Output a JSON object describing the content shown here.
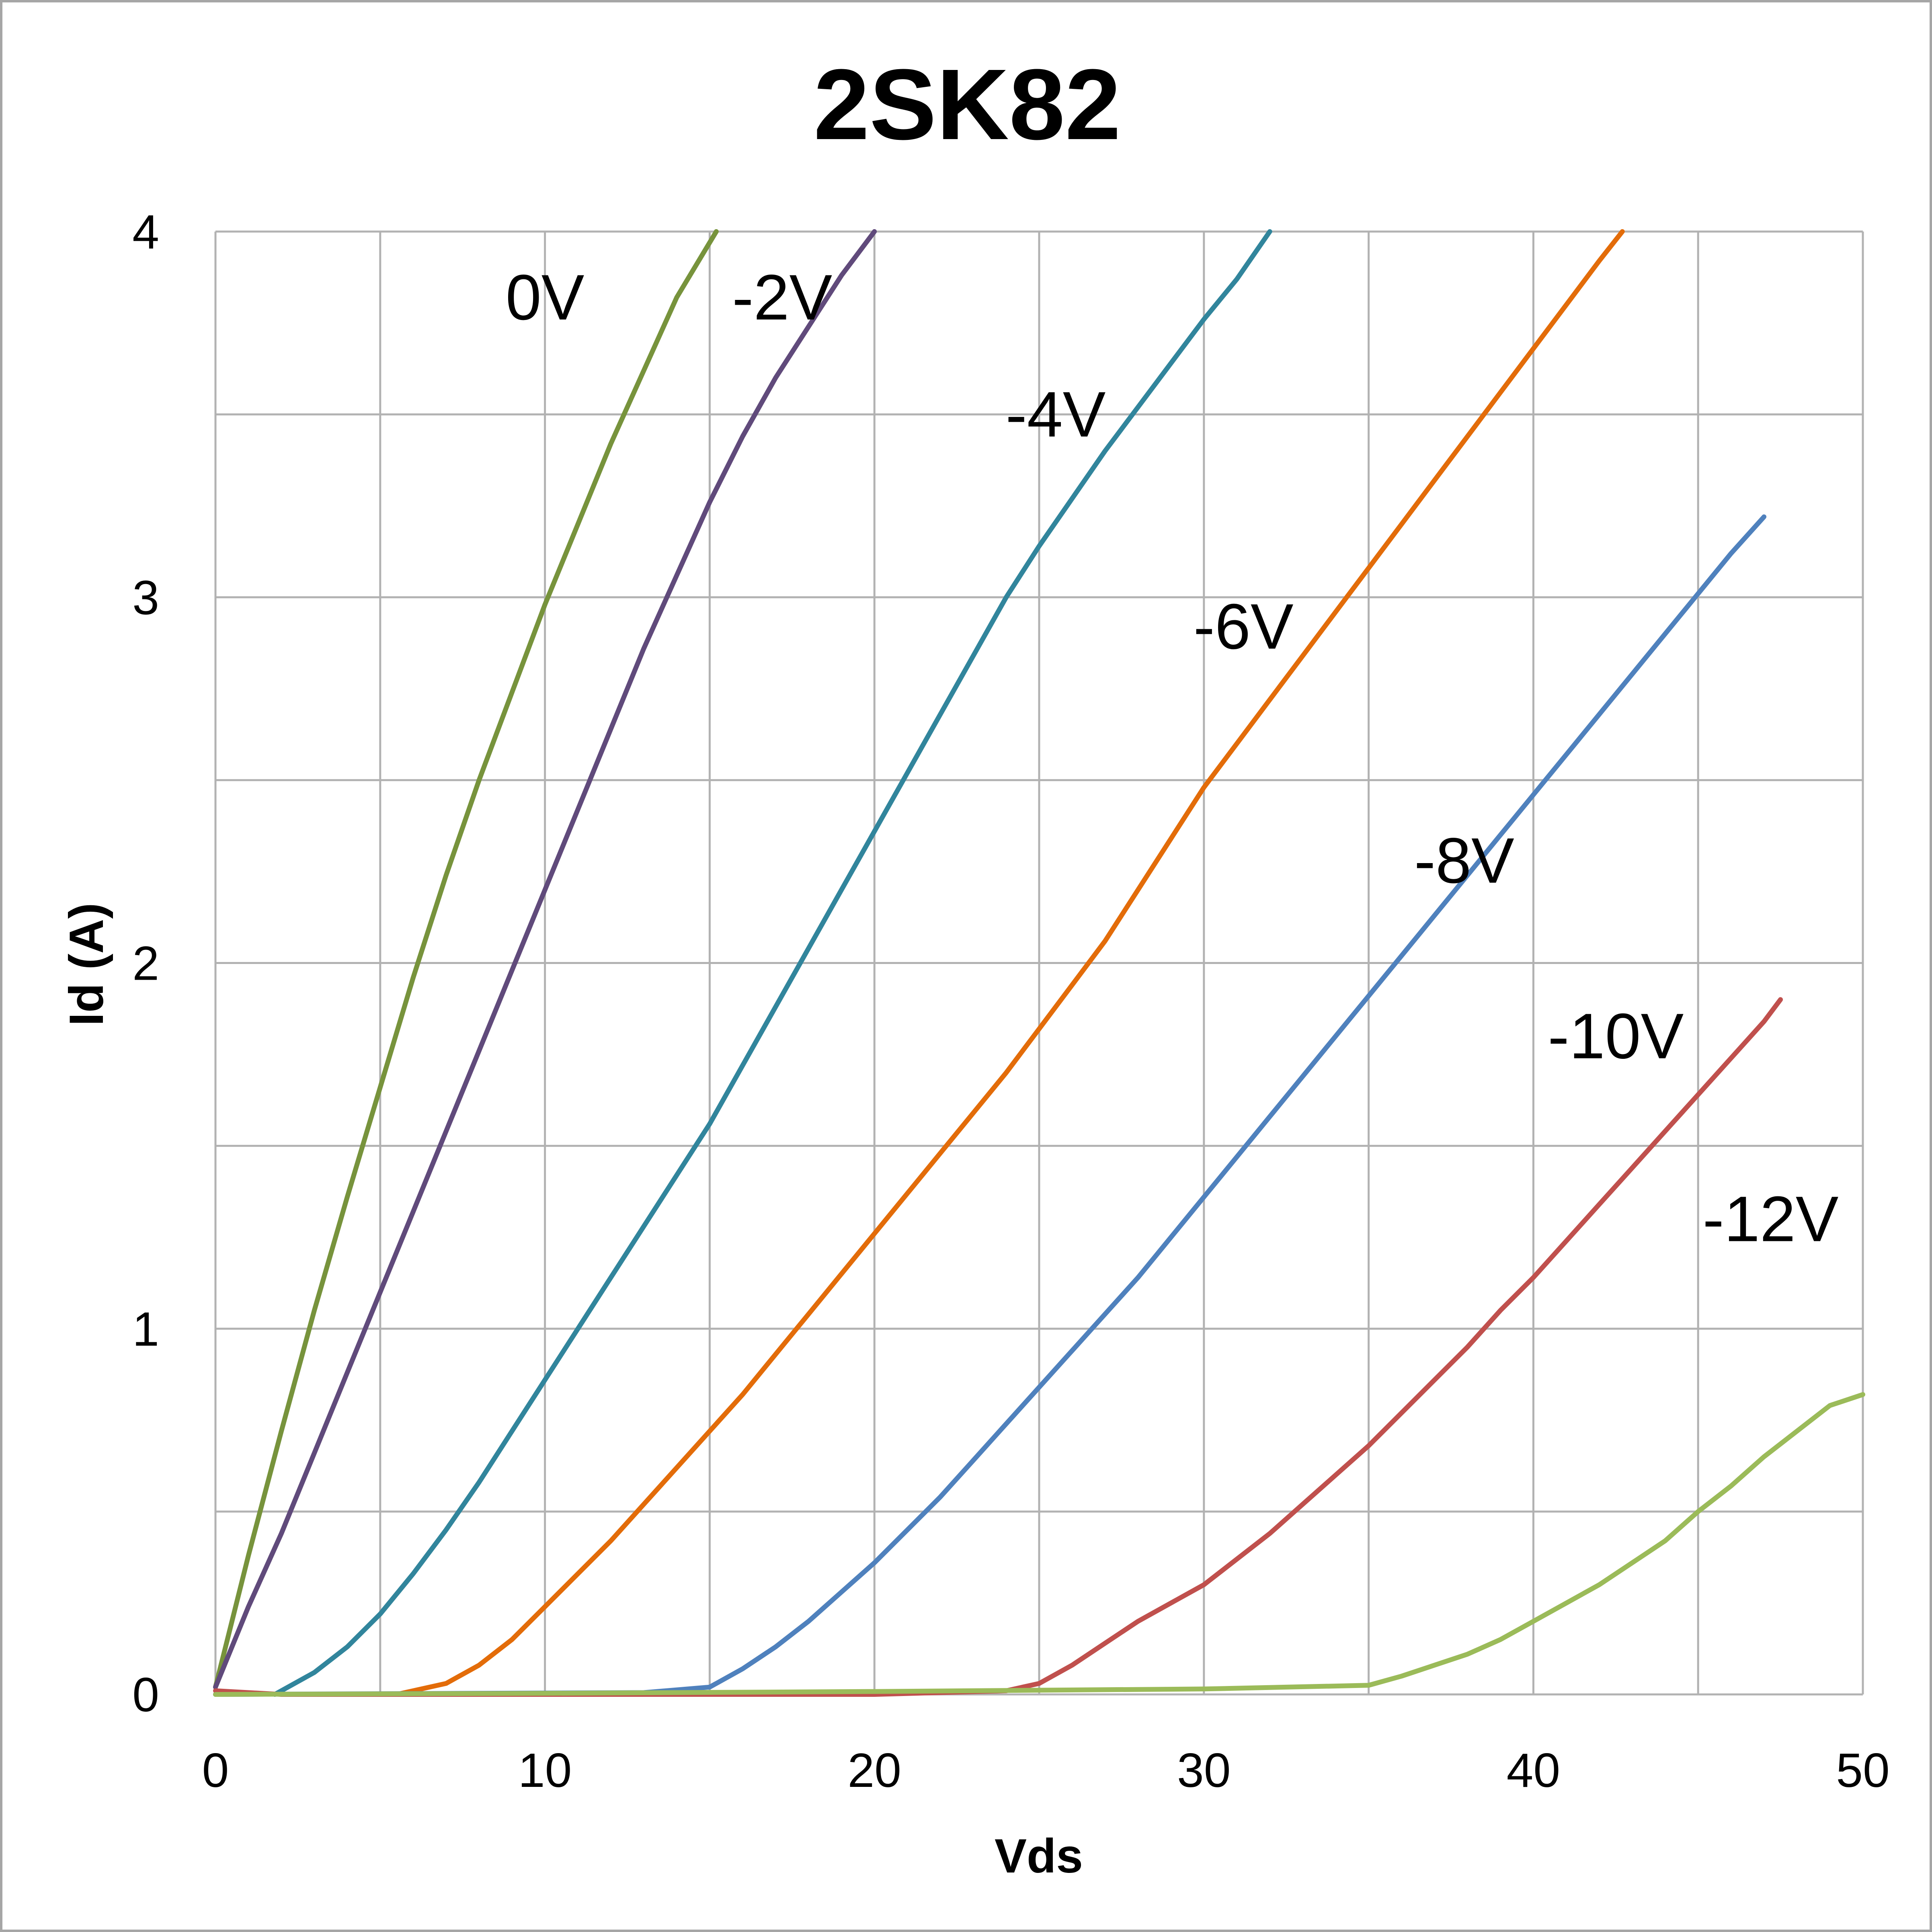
{
  "chart_data": {
    "type": "line",
    "title": "2SK82",
    "xlabel": "Vds",
    "ylabel": "Id (A)",
    "xlim": [
      0,
      50
    ],
    "ylim": [
      0,
      4
    ],
    "x_ticks": [
      "0",
      "10",
      "20",
      "30",
      "40",
      "50"
    ],
    "y_ticks": [
      "0",
      "1",
      "2",
      "3",
      "4"
    ],
    "grid": true,
    "legend": "none",
    "series": [
      {
        "name": "0V",
        "color": "#77933c",
        "points": [
          [
            0,
            0.02
          ],
          [
            1,
            0.38
          ],
          [
            2,
            0.72
          ],
          [
            3,
            1.05
          ],
          [
            4,
            1.36
          ],
          [
            5,
            1.66
          ],
          [
            6,
            1.96
          ],
          [
            7,
            2.24
          ],
          [
            8,
            2.5
          ],
          [
            9,
            2.74
          ],
          [
            10,
            2.98
          ],
          [
            11,
            3.2
          ],
          [
            12,
            3.42
          ],
          [
            13,
            3.62
          ],
          [
            14,
            3.82
          ],
          [
            15.2,
            4.0
          ]
        ]
      },
      {
        "name": "-2V",
        "color": "#604a7b",
        "points": [
          [
            0,
            0.02
          ],
          [
            1,
            0.24
          ],
          [
            2,
            0.44
          ],
          [
            3,
            0.66
          ],
          [
            4,
            0.88
          ],
          [
            5,
            1.1
          ],
          [
            6,
            1.32
          ],
          [
            7,
            1.54
          ],
          [
            8,
            1.76
          ],
          [
            9,
            1.98
          ],
          [
            10,
            2.2
          ],
          [
            11,
            2.42
          ],
          [
            12,
            2.64
          ],
          [
            13,
            2.86
          ],
          [
            14,
            3.06
          ],
          [
            15,
            3.26
          ],
          [
            16,
            3.44
          ],
          [
            17,
            3.6
          ],
          [
            18,
            3.74
          ],
          [
            19,
            3.88
          ],
          [
            20,
            4.0
          ]
        ]
      },
      {
        "name": "-4V",
        "color": "#31859c",
        "points": [
          [
            1.8,
            0.0
          ],
          [
            3,
            0.06
          ],
          [
            4,
            0.13
          ],
          [
            5,
            0.22
          ],
          [
            6,
            0.33
          ],
          [
            7,
            0.45
          ],
          [
            8,
            0.58
          ],
          [
            9,
            0.72
          ],
          [
            10,
            0.86
          ],
          [
            11,
            1.0
          ],
          [
            12,
            1.14
          ],
          [
            13,
            1.28
          ],
          [
            14,
            1.42
          ],
          [
            15,
            1.56
          ],
          [
            16,
            1.72
          ],
          [
            17,
            1.88
          ],
          [
            18,
            2.04
          ],
          [
            19,
            2.2
          ],
          [
            20,
            2.36
          ],
          [
            21,
            2.52
          ],
          [
            22,
            2.68
          ],
          [
            23,
            2.84
          ],
          [
            24,
            3.0
          ],
          [
            25,
            3.14
          ],
          [
            26,
            3.27
          ],
          [
            27,
            3.4
          ],
          [
            28,
            3.52
          ],
          [
            29,
            3.64
          ],
          [
            30,
            3.76
          ],
          [
            31,
            3.87
          ],
          [
            32,
            4.0
          ]
        ]
      },
      {
        "name": "-6V",
        "color": "#e36c09",
        "points": [
          [
            5.5,
            0.0
          ],
          [
            7,
            0.03
          ],
          [
            8,
            0.08
          ],
          [
            9,
            0.15
          ],
          [
            10,
            0.24
          ],
          [
            11,
            0.33
          ],
          [
            12,
            0.42
          ],
          [
            13,
            0.52
          ],
          [
            14,
            0.62
          ],
          [
            15,
            0.72
          ],
          [
            16,
            0.82
          ],
          [
            17,
            0.93
          ],
          [
            18,
            1.04
          ],
          [
            19,
            1.15
          ],
          [
            20,
            1.26
          ],
          [
            21,
            1.37
          ],
          [
            22,
            1.48
          ],
          [
            23,
            1.59
          ],
          [
            24,
            1.7
          ],
          [
            25,
            1.82
          ],
          [
            26,
            1.94
          ],
          [
            27,
            2.06
          ],
          [
            28,
            2.2
          ],
          [
            29,
            2.34
          ],
          [
            30,
            2.48
          ],
          [
            31,
            2.6
          ],
          [
            32,
            2.72
          ],
          [
            33,
            2.84
          ],
          [
            34,
            2.96
          ],
          [
            35,
            3.08
          ],
          [
            36,
            3.2
          ],
          [
            37,
            3.32
          ],
          [
            38,
            3.44
          ],
          [
            39,
            3.56
          ],
          [
            40,
            3.68
          ],
          [
            41,
            3.8
          ],
          [
            42,
            3.92
          ],
          [
            42.7,
            4.0
          ]
        ]
      },
      {
        "name": "-8V",
        "color": "#4f81bd",
        "points": [
          [
            0,
            0.0
          ],
          [
            13,
            0.005
          ],
          [
            15,
            0.02
          ],
          [
            16,
            0.07
          ],
          [
            17,
            0.13
          ],
          [
            18,
            0.2
          ],
          [
            19,
            0.28
          ],
          [
            20,
            0.36
          ],
          [
            21,
            0.45
          ],
          [
            22,
            0.54
          ],
          [
            23,
            0.64
          ],
          [
            24,
            0.74
          ],
          [
            25,
            0.84
          ],
          [
            26,
            0.94
          ],
          [
            27,
            1.04
          ],
          [
            28,
            1.14
          ],
          [
            29,
            1.25
          ],
          [
            30,
            1.36
          ],
          [
            31,
            1.47
          ],
          [
            32,
            1.58
          ],
          [
            33,
            1.69
          ],
          [
            34,
            1.8
          ],
          [
            35,
            1.91
          ],
          [
            36,
            2.02
          ],
          [
            37,
            2.13
          ],
          [
            38,
            2.24
          ],
          [
            39,
            2.35
          ],
          [
            40,
            2.46
          ],
          [
            41,
            2.57
          ],
          [
            42,
            2.68
          ],
          [
            43,
            2.79
          ],
          [
            44,
            2.9
          ],
          [
            45,
            3.01
          ],
          [
            46,
            3.12
          ],
          [
            47,
            3.22
          ]
        ]
      },
      {
        "name": "-10V",
        "color": "#c0504d",
        "points": [
          [
            0,
            0.01
          ],
          [
            2,
            0.0
          ],
          [
            20,
            0.0
          ],
          [
            24,
            0.01
          ],
          [
            25,
            0.03
          ],
          [
            26,
            0.08
          ],
          [
            27,
            0.14
          ],
          [
            28,
            0.2
          ],
          [
            29,
            0.25
          ],
          [
            30,
            0.3
          ],
          [
            31,
            0.37
          ],
          [
            32,
            0.44
          ],
          [
            33,
            0.52
          ],
          [
            34,
            0.6
          ],
          [
            35,
            0.68
          ],
          [
            36,
            0.77
          ],
          [
            37,
            0.86
          ],
          [
            38,
            0.95
          ],
          [
            39,
            1.05
          ],
          [
            40,
            1.14
          ],
          [
            41,
            1.24
          ],
          [
            42,
            1.34
          ],
          [
            43,
            1.44
          ],
          [
            44,
            1.54
          ],
          [
            45,
            1.64
          ],
          [
            46,
            1.74
          ],
          [
            47,
            1.84
          ],
          [
            47.5,
            1.9
          ]
        ]
      },
      {
        "name": "-12V",
        "color": "#9bbb59",
        "points": [
          [
            0,
            0.0
          ],
          [
            10,
            0.003
          ],
          [
            20,
            0.008
          ],
          [
            30,
            0.015
          ],
          [
            35,
            0.025
          ],
          [
            36,
            0.05
          ],
          [
            37,
            0.08
          ],
          [
            38,
            0.11
          ],
          [
            39,
            0.15
          ],
          [
            40,
            0.2
          ],
          [
            41,
            0.25
          ],
          [
            42,
            0.3
          ],
          [
            43,
            0.36
          ],
          [
            44,
            0.42
          ],
          [
            45,
            0.5
          ],
          [
            46,
            0.57
          ],
          [
            47,
            0.65
          ],
          [
            48,
            0.72
          ],
          [
            49,
            0.79
          ],
          [
            50,
            0.82
          ]
        ]
      }
    ],
    "curve_labels": [
      {
        "text": "0V",
        "x": 10,
        "y": 3.82
      },
      {
        "text": "-2V",
        "x": 17.2,
        "y": 3.82
      },
      {
        "text": "-4V",
        "x": 25.5,
        "y": 3.5
      },
      {
        "text": "-6V",
        "x": 31.2,
        "y": 2.92
      },
      {
        "text": "-8V",
        "x": 37.9,
        "y": 2.28
      },
      {
        "text": "-10V",
        "x": 42.5,
        "y": 1.8
      },
      {
        "text": "-12V",
        "x": 47.2,
        "y": 1.3
      }
    ]
  }
}
